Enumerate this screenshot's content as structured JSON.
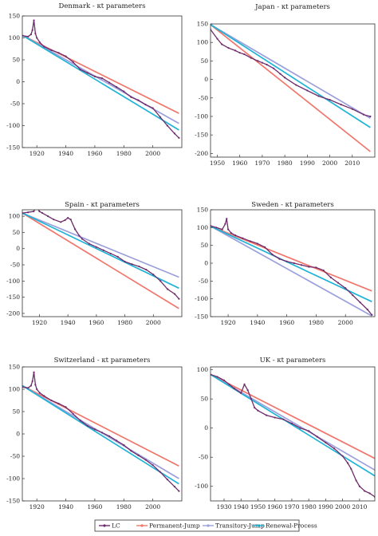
{
  "legend": {
    "entries": [
      {
        "name": "LC",
        "color": "#6e2c6b",
        "marker": "dot"
      },
      {
        "name": "Permanent-Jump",
        "color": "#f0766b",
        "marker": "dot"
      },
      {
        "name": "Transitory-Jump",
        "color": "#9b9fdb",
        "marker": "dot"
      },
      {
        "name": "Renewal-Process",
        "color": "#1fb4d6",
        "marker": "dot"
      }
    ]
  },
  "chart_data": [
    {
      "type": "line",
      "title": "Denmark - κt parameters",
      "xlim": [
        1910,
        2020
      ],
      "ylim": [
        -150,
        150
      ],
      "xticks": [
        1920,
        1940,
        1960,
        1980,
        2000
      ],
      "yticks": [
        -150,
        -100,
        -50,
        0,
        50,
        100,
        150
      ],
      "series": [
        {
          "name": "LC",
          "x": [
            1910,
            1914,
            1916,
            1917,
            1918,
            1919,
            1920,
            1922,
            1925,
            1930,
            1935,
            1940,
            1945,
            1950,
            1955,
            1960,
            1965,
            1970,
            1975,
            1980,
            1985,
            1990,
            1995,
            2000,
            2005,
            2010,
            2015,
            2018
          ],
          "y": [
            105,
            103,
            108,
            118,
            140,
            110,
            100,
            90,
            80,
            72,
            66,
            58,
            45,
            28,
            20,
            12,
            8,
            -2,
            -12,
            -22,
            -35,
            -42,
            -52,
            -60,
            -80,
            -100,
            -118,
            -128
          ]
        },
        {
          "name": "Permanent-Jump",
          "x": [
            1910,
            2018
          ],
          "y": [
            106,
            -72
          ]
        },
        {
          "name": "Transitory-Jump",
          "x": [
            1910,
            2018
          ],
          "y": [
            106,
            -95
          ]
        },
        {
          "name": "Renewal-Process",
          "x": [
            1910,
            2018
          ],
          "y": [
            106,
            -110
          ]
        }
      ]
    },
    {
      "type": "line",
      "title": "Japan - κt parameters",
      "xlim": [
        1947,
        2020
      ],
      "ylim": [
        -210,
        150
      ],
      "xticks": [
        1950,
        1960,
        1970,
        1980,
        1990,
        2000,
        2010
      ],
      "yticks": [
        -200,
        -150,
        -100,
        -50,
        0,
        50,
        100,
        150
      ],
      "series": [
        {
          "name": "LC",
          "x": [
            1947,
            1950,
            1952,
            1955,
            1958,
            1960,
            1962,
            1965,
            1968,
            1970,
            1972,
            1975,
            1978,
            1980,
            1985,
            1990,
            1995,
            2000,
            2005,
            2010,
            2015,
            2018
          ],
          "y": [
            135,
            110,
            95,
            85,
            78,
            72,
            68,
            58,
            50,
            45,
            40,
            30,
            15,
            5,
            -15,
            -30,
            -45,
            -55,
            -68,
            -80,
            -95,
            -100
          ]
        },
        {
          "name": "Permanent-Jump",
          "x": [
            1947,
            2018
          ],
          "y": [
            148,
            -195
          ]
        },
        {
          "name": "Transitory-Jump",
          "x": [
            1947,
            2018
          ],
          "y": [
            148,
            -105
          ]
        },
        {
          "name": "Renewal-Process",
          "x": [
            1947,
            2018
          ],
          "y": [
            148,
            -130
          ]
        }
      ]
    },
    {
      "type": "line",
      "title": "Spain - κt parameters",
      "xlim": [
        1908,
        2020
      ],
      "ylim": [
        -210,
        120
      ],
      "xticks": [
        1920,
        1940,
        1960,
        1980,
        2000
      ],
      "yticks": [
        -200,
        -150,
        -100,
        -50,
        0,
        50,
        100
      ],
      "series": [
        {
          "name": "LC",
          "x": [
            1908,
            1912,
            1916,
            1918,
            1920,
            1922,
            1926,
            1930,
            1935,
            1938,
            1940,
            1942,
            1945,
            1948,
            1950,
            1955,
            1960,
            1965,
            1970,
            1975,
            1980,
            1985,
            1990,
            1995,
            2000,
            2005,
            2010,
            2015,
            2018
          ],
          "y": [
            110,
            112,
            115,
            130,
            115,
            110,
            100,
            90,
            82,
            88,
            95,
            90,
            60,
            40,
            30,
            15,
            5,
            -5,
            -15,
            -25,
            -40,
            -48,
            -55,
            -65,
            -80,
            -100,
            -125,
            -140,
            -155
          ]
        },
        {
          "name": "Permanent-Jump",
          "x": [
            1908,
            2018
          ],
          "y": [
            110,
            -185
          ]
        },
        {
          "name": "Transitory-Jump",
          "x": [
            1908,
            2018
          ],
          "y": [
            110,
            -88
          ]
        },
        {
          "name": "Renewal-Process",
          "x": [
            1908,
            2018
          ],
          "y": [
            110,
            -122
          ]
        }
      ]
    },
    {
      "type": "line",
      "title": "Sweden - κt parameters",
      "xlim": [
        1908,
        2020
      ],
      "ylim": [
        -150,
        150
      ],
      "xticks": [
        1920,
        1940,
        1960,
        1980,
        2000
      ],
      "yticks": [
        -150,
        -100,
        -50,
        0,
        50,
        100,
        150
      ],
      "series": [
        {
          "name": "LC",
          "x": [
            1908,
            1912,
            1916,
            1918,
            1919,
            1920,
            1922,
            1925,
            1930,
            1935,
            1940,
            1945,
            1950,
            1955,
            1960,
            1965,
            1970,
            1975,
            1980,
            1985,
            1990,
            1995,
            2000,
            2005,
            2010,
            2015,
            2018
          ],
          "y": [
            105,
            100,
            95,
            110,
            125,
            95,
            85,
            78,
            70,
            62,
            55,
            45,
            25,
            12,
            5,
            0,
            -5,
            -10,
            -12,
            -20,
            -40,
            -55,
            -70,
            -90,
            -110,
            -130,
            -145
          ]
        },
        {
          "name": "Permanent-Jump",
          "x": [
            1908,
            2018
          ],
          "y": [
            104,
            -78
          ]
        },
        {
          "name": "Transitory-Jump",
          "x": [
            1908,
            2018
          ],
          "y": [
            104,
            -148
          ]
        },
        {
          "name": "Renewal-Process",
          "x": [
            1908,
            2018
          ],
          "y": [
            104,
            -108
          ]
        }
      ]
    },
    {
      "type": "line",
      "title": "Switzerland - κt parameters",
      "xlim": [
        1910,
        2020
      ],
      "ylim": [
        -150,
        150
      ],
      "xticks": [
        1920,
        1940,
        1960,
        1980,
        2000
      ],
      "yticks": [
        -150,
        -100,
        -50,
        0,
        50,
        100,
        150
      ],
      "series": [
        {
          "name": "LC",
          "x": [
            1910,
            1914,
            1916,
            1917,
            1918,
            1919,
            1920,
            1922,
            1925,
            1930,
            1935,
            1940,
            1945,
            1950,
            1955,
            1960,
            1965,
            1970,
            1975,
            1980,
            1985,
            1990,
            1995,
            2000,
            2005,
            2010,
            2015,
            2018
          ],
          "y": [
            105,
            103,
            108,
            118,
            138,
            110,
            100,
            92,
            85,
            75,
            68,
            60,
            45,
            30,
            18,
            10,
            3,
            -5,
            -15,
            -25,
            -38,
            -48,
            -58,
            -70,
            -85,
            -102,
            -118,
            -128
          ]
        },
        {
          "name": "Permanent-Jump",
          "x": [
            1910,
            2018
          ],
          "y": [
            108,
            -72
          ]
        },
        {
          "name": "Transitory-Jump",
          "x": [
            1910,
            2018
          ],
          "y": [
            108,
            -100
          ]
        },
        {
          "name": "Renewal-Process",
          "x": [
            1910,
            2018
          ],
          "y": [
            108,
            -112
          ]
        }
      ]
    },
    {
      "type": "line",
      "title": "UK - κt parameters",
      "xlim": [
        1922,
        2019
      ],
      "ylim": [
        -125,
        105
      ],
      "xticks": [
        1930,
        1940,
        1950,
        1960,
        1970,
        1980,
        1990,
        2000,
        2010
      ],
      "yticks": [
        -100,
        -50,
        0,
        50,
        100
      ],
      "series": [
        {
          "name": "LC",
          "x": [
            1922,
            1926,
            1930,
            1933,
            1936,
            1940,
            1942,
            1944,
            1946,
            1948,
            1950,
            1955,
            1960,
            1965,
            1970,
            1975,
            1980,
            1985,
            1990,
            1995,
            2000,
            2003,
            2005,
            2008,
            2010,
            2013,
            2016,
            2019
          ],
          "y": [
            92,
            88,
            82,
            75,
            68,
            60,
            75,
            65,
            50,
            35,
            30,
            22,
            18,
            15,
            8,
            0,
            -5,
            -15,
            -25,
            -35,
            -48,
            -60,
            -70,
            -90,
            -100,
            -108,
            -112,
            -118
          ]
        },
        {
          "name": "Permanent-Jump",
          "x": [
            1922,
            2019
          ],
          "y": [
            92,
            -52
          ]
        },
        {
          "name": "Transitory-Jump",
          "x": [
            1922,
            2019
          ],
          "y": [
            92,
            -72
          ]
        },
        {
          "name": "Renewal-Process",
          "x": [
            1922,
            2019
          ],
          "y": [
            92,
            -82
          ]
        }
      ]
    }
  ]
}
